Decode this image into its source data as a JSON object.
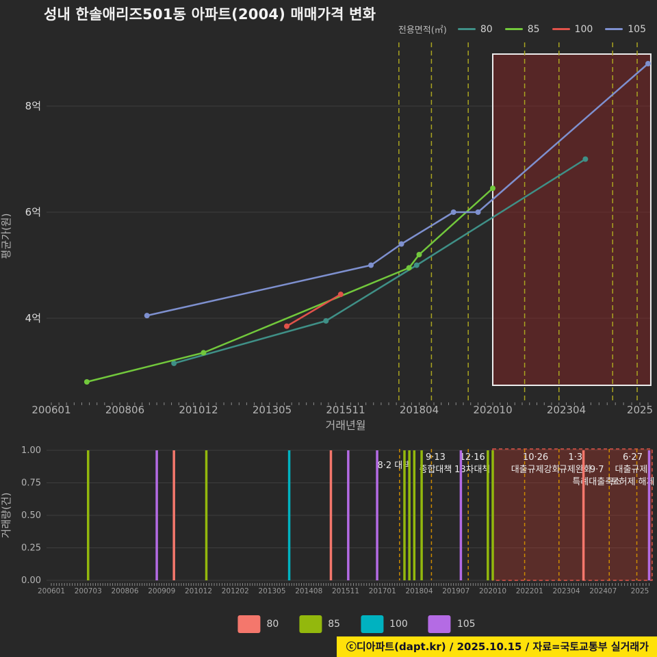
{
  "title": "성내 한솔애리즈501동 아파트(2004) 매매가격 변화",
  "footer": "ⓒ디아파트(dapt.kr) / 2025.10.15 / 자료=국토교통부 실거래가",
  "colors": {
    "background": "#282828",
    "grid": "#3e3e3e",
    "axis_text": "#b5b5b5",
    "y_tick_text": "#dcdcdc",
    "minor_tick": "#8a8a8a",
    "annotation_text": "#ececec",
    "policy_line_top": "#aaa520",
    "policy_line_bottom": "#cc8a00",
    "highlight_box_fill": "rgba(150,35,35,0.42)",
    "highlight_box_border": "#ededed",
    "volume_region_fill": "rgba(195,55,45,0.32)",
    "volume_region_border": "#e0564a",
    "footer_bg": "#ffe10a",
    "footer_text": "#101028"
  },
  "top_legend": {
    "title": "전용면적(㎡)",
    "items": [
      {
        "label": "80",
        "color": "#3f9087"
      },
      {
        "label": "85",
        "color": "#72c83c"
      },
      {
        "label": "100",
        "color": "#e0524a"
      },
      {
        "label": "105",
        "color": "#7e90cf"
      }
    ]
  },
  "bottom_legend": {
    "items": [
      {
        "label": "80",
        "color": "#f4776c"
      },
      {
        "label": "85",
        "color": "#93b80d"
      },
      {
        "label": "100",
        "color": "#00b2c0"
      },
      {
        "label": "105",
        "color": "#b46be4"
      }
    ]
  },
  "chart_data": [
    {
      "type": "line",
      "title": "매매가격 변화",
      "xlabel": "거래년월",
      "ylabel": "평균가(원)",
      "x_ticks": [
        "200601",
        "200806",
        "201012",
        "201305",
        "201511",
        "201804",
        "202010",
        "202304",
        "2025"
      ],
      "y_ticks": [
        {
          "label": "4억",
          "value": 4
        },
        {
          "label": "6억",
          "value": 6
        },
        {
          "label": "8억",
          "value": 8
        }
      ],
      "ylim_eok": [
        2.5,
        9.2
      ],
      "series": [
        {
          "name": "80",
          "color": "#3f9087",
          "points": [
            [
              "201002",
              3.15
            ],
            [
              "201503",
              3.95
            ],
            [
              "201803",
              5.0
            ],
            [
              "202311",
              7.0
            ]
          ]
        },
        {
          "name": "85",
          "color": "#72c83c",
          "points": [
            [
              "200703",
              2.8
            ],
            [
              "201102",
              3.35
            ],
            [
              "201712",
              4.95
            ],
            [
              "201804",
              5.2
            ],
            [
              "202010",
              6.45
            ]
          ]
        },
        {
          "name": "100",
          "color": "#e0524a",
          "points": [
            [
              "201311",
              3.85
            ],
            [
              "201509",
              4.45
            ]
          ]
        },
        {
          "name": "105",
          "color": "#7e90cf",
          "points": [
            [
              "200903",
              4.05
            ],
            [
              "201609",
              5.0
            ],
            [
              "201709",
              5.4
            ],
            [
              "201906",
              6.0
            ],
            [
              "202004",
              6.0
            ],
            [
              "202510",
              8.8
            ]
          ]
        }
      ],
      "highlight_region": {
        "from": "202010",
        "to": "202511"
      }
    },
    {
      "type": "bar",
      "xlabel": "",
      "ylabel": "거래량(건)",
      "x_ticks": [
        "200601",
        "200703",
        "200806",
        "200909",
        "201012",
        "201202",
        "201305",
        "201408",
        "201511",
        "201701",
        "201804",
        "201907",
        "202010",
        "202201",
        "202304",
        "202407",
        "2025"
      ],
      "y_ticks": [
        "0.00",
        "0.25",
        "0.50",
        "0.75",
        "1.00"
      ],
      "ylim": [
        0,
        1
      ],
      "bars": [
        {
          "x": "200703",
          "size": "85",
          "count": 1
        },
        {
          "x": "200907",
          "size": "105",
          "count": 1
        },
        {
          "x": "201002",
          "size": "80",
          "count": 1
        },
        {
          "x": "201103",
          "size": "85",
          "count": 1
        },
        {
          "x": "201312",
          "size": "100",
          "count": 1
        },
        {
          "x": "201505",
          "size": "80",
          "count": 1
        },
        {
          "x": "201512",
          "size": "105",
          "count": 1
        },
        {
          "x": "201611",
          "size": "105",
          "count": 1
        },
        {
          "x": "201710",
          "size": "85",
          "count": 1
        },
        {
          "x": "201712",
          "size": "85",
          "count": 1
        },
        {
          "x": "201802",
          "size": "85",
          "count": 1
        },
        {
          "x": "201805",
          "size": "85",
          "count": 1
        },
        {
          "x": "201909",
          "size": "105",
          "count": 1
        },
        {
          "x": "202008",
          "size": "85",
          "count": 1
        },
        {
          "x": "202010",
          "size": "85",
          "count": 1
        },
        {
          "x": "202311",
          "size": "80",
          "count": 1
        },
        {
          "x": "202510",
          "size": "105",
          "count": 1
        }
      ],
      "highlight_region": {
        "from": "202010",
        "to": "202511"
      }
    }
  ],
  "annotations": [
    {
      "date": "201708",
      "lines": [
        "8·2 대책"
      ]
    },
    {
      "date": "201809",
      "lines": [
        "9·13",
        "종합대책"
      ]
    },
    {
      "date": "201912",
      "lines": [
        "12·16",
        "18차대책"
      ]
    },
    {
      "date": "202111",
      "lines": [
        "10·26",
        "대출규제강화"
      ]
    },
    {
      "date": "202301",
      "lines": [
        "1·3",
        "규제완화"
      ]
    },
    {
      "date": "202409",
      "lines": [
        "9·7",
        "특례대출축소"
      ]
    },
    {
      "date": "202506",
      "lines": [
        "6·27",
        "대출규제,",
        "토허제 해제"
      ]
    }
  ]
}
